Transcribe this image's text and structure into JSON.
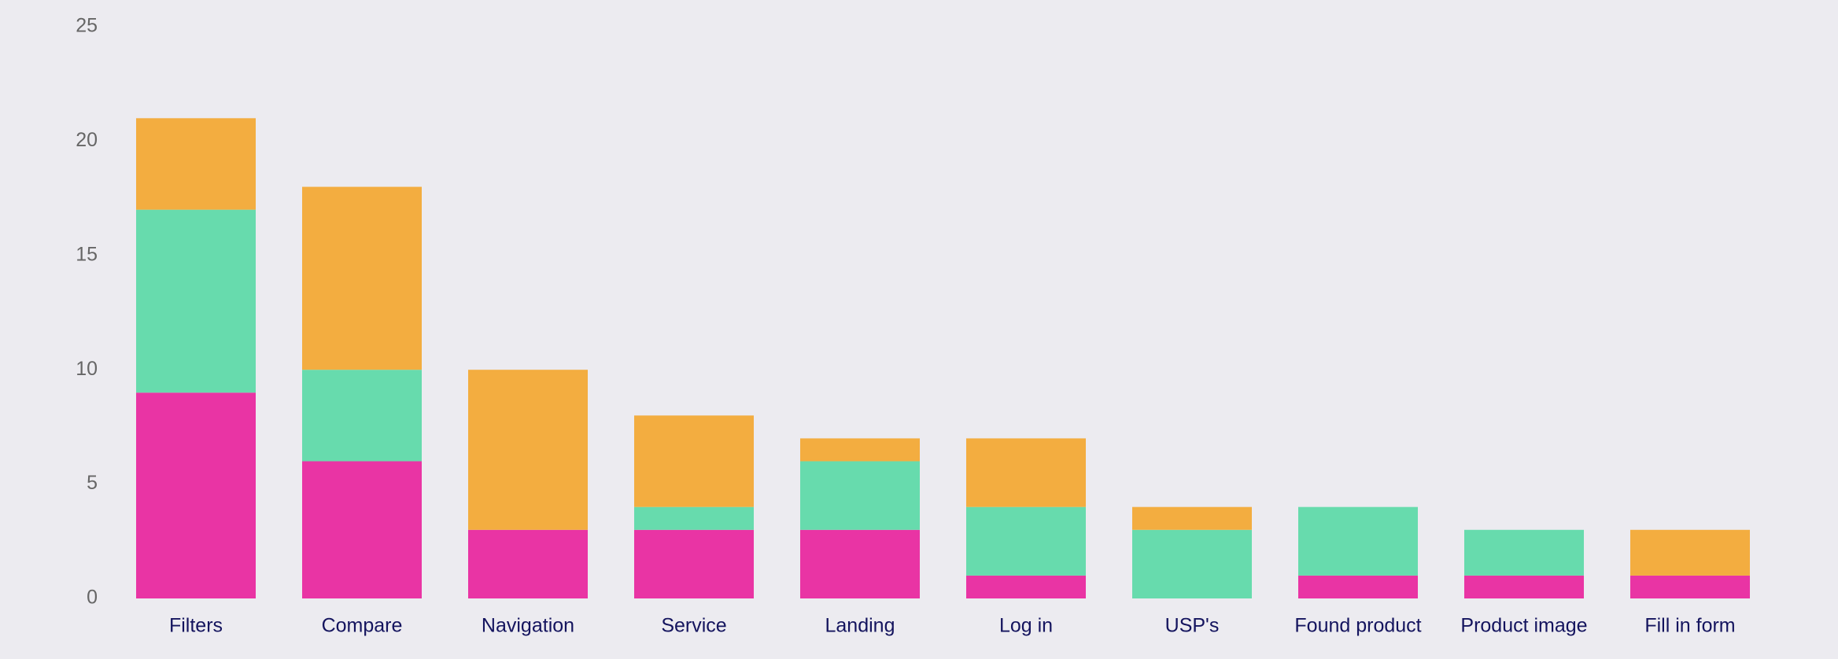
{
  "chart_data": {
    "type": "stacked_bar",
    "categories": [
      "Filters",
      "Compare",
      "Navigation",
      "Service",
      "Landing",
      "Log in",
      "USP's",
      "Found product",
      "Product image",
      "Fill in form"
    ],
    "series": [
      {
        "color": "#e934a4",
        "values": [
          9,
          6,
          3,
          3,
          3,
          1,
          0,
          1,
          1,
          1
        ]
      },
      {
        "color": "#67dbad",
        "values": [
          8,
          4,
          0,
          1,
          3,
          3,
          3,
          3,
          2,
          0
        ]
      },
      {
        "color": "#f3ad40",
        "values": [
          4,
          8,
          7,
          4,
          1,
          3,
          1,
          0,
          0,
          2
        ]
      }
    ],
    "ylim": [
      0,
      25
    ],
    "yticks": [
      0,
      5,
      10,
      15,
      20,
      25
    ],
    "grid": false
  }
}
